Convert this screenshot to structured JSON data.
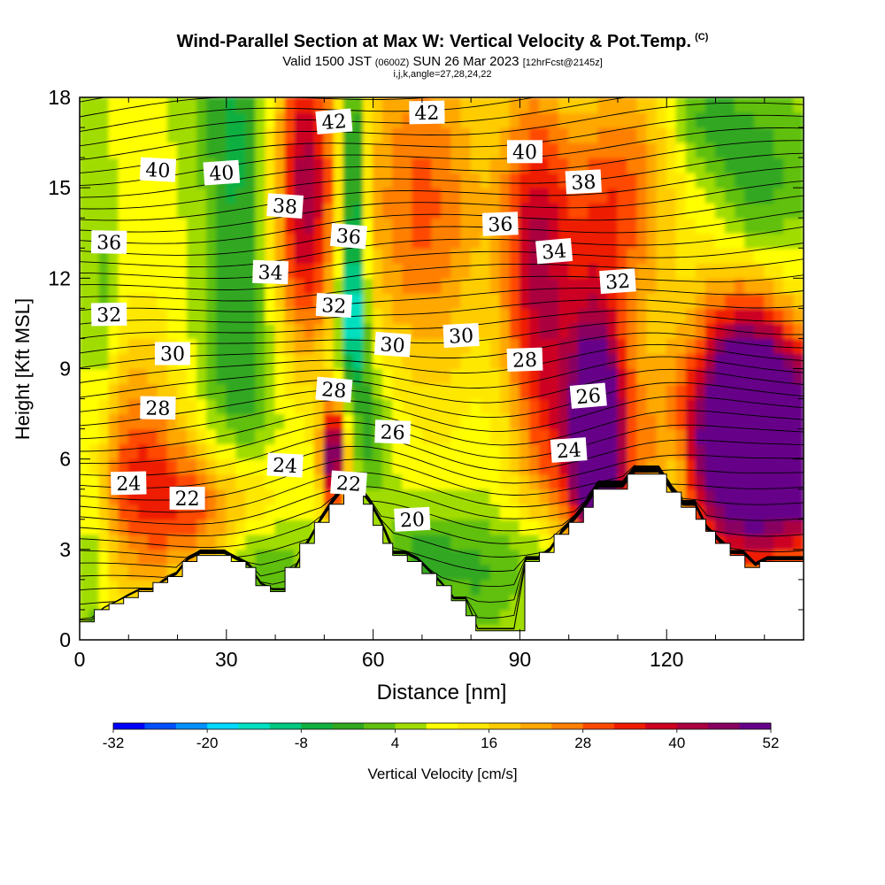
{
  "header": {
    "title": "Wind-Parallel Section at Max W: Vertical Velocity & Pot.Temp.",
    "copyright": "(C)",
    "valid_prefix": "Valid 1500 JST",
    "valid_utc": "(0600Z)",
    "valid_date": "SUN 26 Mar 2023",
    "forecast": "[12hrFcst@2145z]",
    "params": "i,j,k,angle=27,28,24,22"
  },
  "chart_data": {
    "type": "heatmap",
    "title": "Wind-Parallel Section at Max W: Vertical Velocity & Pot.Temp.",
    "xlabel": "Distance [nm]",
    "ylabel": "Height [Kft MSL]",
    "xlim": [
      0,
      148
    ],
    "ylim": [
      0,
      18
    ],
    "x_ticks": [
      0,
      30,
      60,
      90,
      120
    ],
    "y_ticks": [
      0,
      3,
      6,
      9,
      12,
      15,
      18
    ],
    "colorbar": {
      "label": "Vertical Velocity [cm/s]",
      "ticks": [
        "-32",
        "-20",
        "-8",
        "4",
        "16",
        "28",
        "40",
        "52"
      ],
      "min": -32,
      "max": 52,
      "colors": [
        "#0000ff",
        "#0050ff",
        "#0090ff",
        "#00d8ff",
        "#00e0c0",
        "#00c880",
        "#10b040",
        "#30a820",
        "#60c010",
        "#a0dc00",
        "#ffff00",
        "#ffe800",
        "#ffcc00",
        "#ffa800",
        "#ff8000",
        "#ff4800",
        "#ee1c00",
        "#cc0020",
        "#aa0040",
        "#880060",
        "#660088"
      ]
    },
    "terrain": [
      [
        0,
        0.6
      ],
      [
        3,
        0.6
      ],
      [
        3,
        1
      ],
      [
        6,
        1
      ],
      [
        6,
        1.2
      ],
      [
        9,
        1.2
      ],
      [
        9,
        1.4
      ],
      [
        12,
        1.4
      ],
      [
        12,
        1.6
      ],
      [
        15,
        1.6
      ],
      [
        15,
        1.9
      ],
      [
        18,
        1.9
      ],
      [
        18,
        2.1
      ],
      [
        21,
        2.1
      ],
      [
        21,
        2.6
      ],
      [
        24,
        2.6
      ],
      [
        24,
        2.8
      ],
      [
        31,
        2.8
      ],
      [
        31,
        2.6
      ],
      [
        34,
        2.6
      ],
      [
        34,
        2.4
      ],
      [
        36,
        2.4
      ],
      [
        36,
        1.8
      ],
      [
        39,
        1.8
      ],
      [
        39,
        1.6
      ],
      [
        42,
        1.6
      ],
      [
        42,
        2.4
      ],
      [
        45,
        2.4
      ],
      [
        45,
        3.2
      ],
      [
        48,
        3.2
      ],
      [
        48,
        3.9
      ],
      [
        51,
        3.9
      ],
      [
        51,
        4.5
      ],
      [
        54,
        4.5
      ],
      [
        54,
        5.0
      ],
      [
        58,
        5.0
      ],
      [
        58,
        4.5
      ],
      [
        60,
        4.5
      ],
      [
        60,
        3.8
      ],
      [
        62,
        3.8
      ],
      [
        62,
        3.2
      ],
      [
        64,
        3.2
      ],
      [
        64,
        2.8
      ],
      [
        67,
        2.8
      ],
      [
        67,
        2.6
      ],
      [
        70,
        2.6
      ],
      [
        70,
        2.2
      ],
      [
        73,
        2.2
      ],
      [
        73,
        1.8
      ],
      [
        76,
        1.8
      ],
      [
        76,
        1.3
      ],
      [
        79,
        1.3
      ],
      [
        79,
        0.8
      ],
      [
        81,
        0.8
      ],
      [
        81,
        0.3
      ],
      [
        91,
        0.3
      ],
      [
        91,
        2.6
      ],
      [
        94,
        2.6
      ],
      [
        94,
        2.9
      ],
      [
        97,
        2.9
      ],
      [
        97,
        3.5
      ],
      [
        100,
        3.5
      ],
      [
        100,
        3.9
      ],
      [
        103,
        3.9
      ],
      [
        103,
        4.4
      ],
      [
        105,
        4.4
      ],
      [
        105,
        5.0
      ],
      [
        112,
        5.0
      ],
      [
        112,
        5.5
      ],
      [
        120,
        5.5
      ],
      [
        120,
        4.9
      ],
      [
        123,
        4.9
      ],
      [
        123,
        4.4
      ],
      [
        126,
        4.4
      ],
      [
        126,
        4.0
      ],
      [
        128,
        4.0
      ],
      [
        128,
        3.6
      ],
      [
        130,
        3.6
      ],
      [
        130,
        3.2
      ],
      [
        133,
        3.2
      ],
      [
        133,
        2.8
      ],
      [
        136,
        2.8
      ],
      [
        136,
        2.4
      ],
      [
        139,
        2.4
      ],
      [
        139,
        2.6
      ],
      [
        148,
        2.6
      ]
    ],
    "updrafts": [
      {
        "x": 148,
        "y": 6.3,
        "w": 52,
        "sx": 18,
        "sy": 2.6
      },
      {
        "x": 136,
        "y": 7.8,
        "w": 38,
        "sx": 7,
        "sy": 3.0
      },
      {
        "x": 106,
        "y": 6.7,
        "w": 40,
        "sx": 3.4,
        "sy": 2.5
      },
      {
        "x": 103,
        "y": 7.2,
        "w": 30,
        "sx": 8,
        "sy": 4.5
      },
      {
        "x": 93,
        "y": 13,
        "w": 27,
        "sx": 5,
        "sy": 4.5
      },
      {
        "x": 110,
        "y": 15,
        "w": 20,
        "sx": 8,
        "sy": 3
      },
      {
        "x": 52,
        "y": 6.1,
        "w": 44,
        "sx": 1.9,
        "sy": 1.3
      },
      {
        "x": 46,
        "y": 15,
        "w": 36,
        "sx": 4.5,
        "sy": 4.5
      },
      {
        "x": 70,
        "y": 14,
        "w": 20,
        "sx": 10,
        "sy": 5
      },
      {
        "x": 12,
        "y": 6,
        "w": 22,
        "sx": 7,
        "sy": 3
      },
      {
        "x": 27,
        "y": 4.5,
        "w": 20,
        "sx": 10,
        "sy": 1.5
      }
    ],
    "downdrafts": [
      {
        "x": 56,
        "y": 15,
        "w": -24,
        "sx": 1.8,
        "sy": 3.2
      },
      {
        "x": 56,
        "y": 10.5,
        "w": -20,
        "sx": 2.2,
        "sy": 1.8
      },
      {
        "x": 60,
        "y": 7,
        "w": -10,
        "sx": 2.5,
        "sy": 1.5
      },
      {
        "x": 32,
        "y": 12,
        "w": -9,
        "sx": 4,
        "sy": 6
      },
      {
        "x": 30,
        "y": 17,
        "w": -6,
        "sx": 6,
        "sy": 2
      },
      {
        "x": 138,
        "y": 15,
        "w": -12,
        "sx": 6,
        "sy": 2.2
      },
      {
        "x": 128,
        "y": 17.3,
        "w": -10,
        "sx": 5,
        "sy": 1.5
      },
      {
        "x": 122,
        "y": 5.5,
        "w": -12,
        "sx": 2.2,
        "sy": 1.2
      },
      {
        "x": 5,
        "y": 11,
        "w": -6,
        "sx": 2,
        "sy": 3
      },
      {
        "x": 3,
        "y": 2,
        "w": -7,
        "sx": 2,
        "sy": 3
      },
      {
        "x": 98,
        "y": 3,
        "w": -10,
        "sx": 7,
        "sy": 0.9
      },
      {
        "x": 82,
        "y": 2,
        "w": -8,
        "sx": 8,
        "sy": 1.4
      },
      {
        "x": 70,
        "y": 3,
        "w": -9,
        "sx": 6,
        "sy": 1.2
      },
      {
        "x": 38,
        "y": 2.6,
        "w": -8,
        "sx": 5,
        "sy": 1
      },
      {
        "x": 68,
        "y": 8,
        "w": -2,
        "sx": 4,
        "sy": 3
      }
    ],
    "isentrope_labels": [
      {
        "text": "42",
        "x": 52,
        "y": 17.2
      },
      {
        "text": "42",
        "x": 71,
        "y": 17.5
      },
      {
        "text": "40",
        "x": 16,
        "y": 15.6
      },
      {
        "text": "40",
        "x": 29,
        "y": 15.5
      },
      {
        "text": "40",
        "x": 91,
        "y": 16.2
      },
      {
        "text": "38",
        "x": 42,
        "y": 14.4
      },
      {
        "text": "38",
        "x": 103,
        "y": 15.2
      },
      {
        "text": "36",
        "x": 6,
        "y": 13.2
      },
      {
        "text": "36",
        "x": 55,
        "y": 13.4
      },
      {
        "text": "36",
        "x": 86,
        "y": 13.8
      },
      {
        "text": "34",
        "x": 39,
        "y": 12.2
      },
      {
        "text": "34",
        "x": 97,
        "y": 12.9
      },
      {
        "text": "32",
        "x": 6,
        "y": 10.8
      },
      {
        "text": "32",
        "x": 52,
        "y": 11.1
      },
      {
        "text": "32",
        "x": 110,
        "y": 11.9
      },
      {
        "text": "30",
        "x": 19,
        "y": 9.5
      },
      {
        "text": "30",
        "x": 64,
        "y": 9.8
      },
      {
        "text": "30",
        "x": 78,
        "y": 10.1
      },
      {
        "text": "28",
        "x": 16,
        "y": 7.7
      },
      {
        "text": "28",
        "x": 52,
        "y": 8.3
      },
      {
        "text": "28",
        "x": 91,
        "y": 9.3
      },
      {
        "text": "26",
        "x": 64,
        "y": 6.9
      },
      {
        "text": "26",
        "x": 104,
        "y": 8.1
      },
      {
        "text": "24",
        "x": 10,
        "y": 5.2
      },
      {
        "text": "24",
        "x": 42,
        "y": 5.8
      },
      {
        "text": "24",
        "x": 100,
        "y": 6.3
      },
      {
        "text": "22",
        "x": 22,
        "y": 4.7
      },
      {
        "text": "22",
        "x": 55,
        "y": 5.2
      },
      {
        "text": "20",
        "x": 68,
        "y": 4.0
      }
    ]
  }
}
